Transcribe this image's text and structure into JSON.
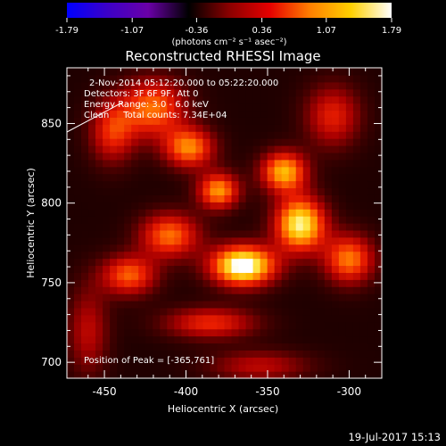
{
  "colorbar": {
    "ticks": [
      "-1.79",
      "-1.07",
      "-0.36",
      "0.36",
      "1.07",
      "1.79"
    ],
    "min": -1.79,
    "max": 1.79,
    "units_label": "(photons cm⁻² s⁻¹ asec⁻²)",
    "colors": [
      "#0000ff",
      "#3c00c8",
      "#6a00a8",
      "#000000",
      "#8a0000",
      "#e60000",
      "#ff8000",
      "#ffd000",
      "#ffffff"
    ]
  },
  "chart_data": {
    "type": "heatmap",
    "title": "Reconstructed RHESSI Image",
    "xlabel": "Heliocentric X (arcsec)",
    "ylabel": "Heliocentric Y (arcsec)",
    "xlim": [
      -473,
      -280
    ],
    "ylim": [
      690,
      885
    ],
    "xticks": [
      -450,
      -400,
      -350,
      -300
    ],
    "yticks": [
      700,
      750,
      800,
      850
    ],
    "annotations": {
      "time_range": "2-Nov-2014 05:12:20.000 to 05:22:20.000",
      "detectors": "Detectors: 3F 6F 9F, Att 0",
      "energy": "Energy Range: 3.0 - 6.0 keV",
      "method": "Clean     Total counts: 7.34E+04",
      "peak": "Position of Peak = [-365,761]"
    },
    "peak": [
      -365,
      761
    ],
    "sources": [
      {
        "x": -365,
        "y": 761,
        "sx": 14,
        "sy": 9,
        "amp": 1.0
      },
      {
        "x": -330,
        "y": 787,
        "sx": 11,
        "sy": 12,
        "amp": 0.88
      },
      {
        "x": -340,
        "y": 820,
        "sx": 10,
        "sy": 9,
        "amp": 0.72
      },
      {
        "x": -380,
        "y": 808,
        "sx": 9,
        "sy": 8,
        "amp": 0.66
      },
      {
        "x": -398,
        "y": 835,
        "sx": 11,
        "sy": 9,
        "amp": 0.62
      },
      {
        "x": -410,
        "y": 780,
        "sx": 13,
        "sy": 10,
        "amp": 0.58
      },
      {
        "x": -420,
        "y": 860,
        "sx": 14,
        "sy": 13,
        "amp": 0.58
      },
      {
        "x": -435,
        "y": 755,
        "sx": 12,
        "sy": 9,
        "amp": 0.55
      },
      {
        "x": -300,
        "y": 765,
        "sx": 11,
        "sy": 11,
        "amp": 0.6
      },
      {
        "x": -445,
        "y": 845,
        "sx": 10,
        "sy": 14,
        "amp": 0.45
      },
      {
        "x": -385,
        "y": 725,
        "sx": 20,
        "sy": 7,
        "amp": 0.45
      },
      {
        "x": -310,
        "y": 855,
        "sx": 12,
        "sy": 14,
        "amp": 0.42
      },
      {
        "x": -355,
        "y": 698,
        "sx": 22,
        "sy": 7,
        "amp": 0.32
      },
      {
        "x": -460,
        "y": 720,
        "sx": 9,
        "sy": 20,
        "amp": 0.32
      }
    ],
    "grid": false
  },
  "footer": {
    "date": "19-Jul-2017 15:13"
  }
}
